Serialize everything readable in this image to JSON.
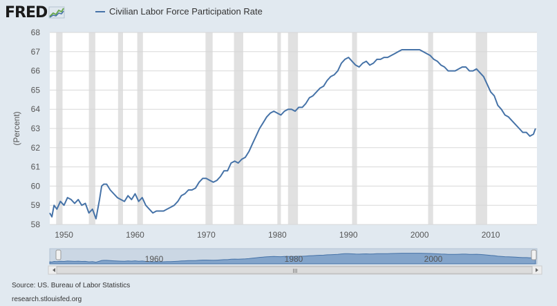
{
  "logo": {
    "text": "FRED",
    "icon": "trend-line-icon"
  },
  "source": "Source: US. Bureau of Labor Statistics",
  "site": "research.stlouisfed.org",
  "navigator": {
    "labels": [
      "1960",
      "1980",
      "2000"
    ],
    "scroll_grip": "III"
  },
  "colors": {
    "line": "#4572a7",
    "recession": "#e1e1e1",
    "background": "#e1e9f0",
    "plot": "#ffffff",
    "navigator_fill": "#6b93c2"
  },
  "chart_data": {
    "type": "line",
    "title": "",
    "xlabel": "",
    "ylabel": "(Percent)",
    "xlim": [
      1948,
      2016.5
    ],
    "ylim": [
      58,
      68
    ],
    "yticks": [
      58,
      59,
      60,
      61,
      62,
      63,
      64,
      65,
      66,
      67,
      68
    ],
    "xticks": [
      1950,
      1960,
      1970,
      1980,
      1990,
      2000,
      2010
    ],
    "grid": true,
    "legend_position": "top",
    "series": [
      {
        "name": "Civilian Labor Force Participation Rate",
        "color": "#4572a7",
        "x": [
          1948.0,
          1948.3,
          1948.6,
          1949.0,
          1949.5,
          1950.0,
          1950.5,
          1951.0,
          1951.5,
          1952.0,
          1952.5,
          1953.0,
          1953.5,
          1954.0,
          1954.5,
          1955.0,
          1955.3,
          1955.6,
          1956.0,
          1956.5,
          1957.0,
          1957.5,
          1958.0,
          1958.5,
          1959.0,
          1959.5,
          1960.0,
          1960.5,
          1961.0,
          1961.5,
          1962.0,
          1962.5,
          1963.0,
          1963.5,
          1964.0,
          1964.5,
          1965.0,
          1965.5,
          1966.0,
          1966.5,
          1967.0,
          1967.5,
          1968.0,
          1968.5,
          1969.0,
          1969.5,
          1970.0,
          1970.5,
          1971.0,
          1971.5,
          1972.0,
          1972.5,
          1973.0,
          1973.5,
          1974.0,
          1974.5,
          1975.0,
          1975.5,
          1976.0,
          1976.5,
          1977.0,
          1977.5,
          1978.0,
          1978.5,
          1979.0,
          1979.5,
          1980.0,
          1980.5,
          1981.0,
          1981.5,
          1982.0,
          1982.5,
          1983.0,
          1983.5,
          1984.0,
          1984.5,
          1985.0,
          1985.5,
          1986.0,
          1986.5,
          1987.0,
          1987.5,
          1988.0,
          1988.5,
          1989.0,
          1989.5,
          1990.0,
          1990.5,
          1991.0,
          1991.5,
          1992.0,
          1992.5,
          1993.0,
          1993.5,
          1994.0,
          1994.5,
          1995.0,
          1995.5,
          1996.0,
          1996.5,
          1997.0,
          1997.5,
          1998.0,
          1998.5,
          1999.0,
          1999.5,
          2000.0,
          2000.5,
          2001.0,
          2001.5,
          2002.0,
          2002.5,
          2003.0,
          2003.5,
          2004.0,
          2004.5,
          2005.0,
          2005.5,
          2006.0,
          2006.5,
          2007.0,
          2007.5,
          2008.0,
          2008.5,
          2009.0,
          2009.5,
          2010.0,
          2010.5,
          2011.0,
          2011.5,
          2012.0,
          2012.5,
          2013.0,
          2013.5,
          2014.0,
          2014.5,
          2015.0,
          2015.5,
          2016.0,
          2016.3
        ],
        "values": [
          58.6,
          58.4,
          59.0,
          58.8,
          59.2,
          59.0,
          59.4,
          59.3,
          59.1,
          59.3,
          59.0,
          59.1,
          58.6,
          58.8,
          58.3,
          59.3,
          60.0,
          60.1,
          60.1,
          59.8,
          59.6,
          59.4,
          59.3,
          59.2,
          59.5,
          59.3,
          59.6,
          59.2,
          59.4,
          59.0,
          58.8,
          58.6,
          58.7,
          58.7,
          58.7,
          58.8,
          58.9,
          59.0,
          59.2,
          59.5,
          59.6,
          59.8,
          59.8,
          59.9,
          60.2,
          60.4,
          60.4,
          60.3,
          60.2,
          60.3,
          60.5,
          60.8,
          60.8,
          61.2,
          61.3,
          61.2,
          61.4,
          61.5,
          61.8,
          62.2,
          62.6,
          63.0,
          63.3,
          63.6,
          63.8,
          63.9,
          63.8,
          63.7,
          63.9,
          64.0,
          64.0,
          63.9,
          64.1,
          64.1,
          64.3,
          64.6,
          64.7,
          64.9,
          65.1,
          65.2,
          65.5,
          65.7,
          65.8,
          66.0,
          66.4,
          66.6,
          66.7,
          66.5,
          66.3,
          66.2,
          66.4,
          66.5,
          66.3,
          66.4,
          66.6,
          66.6,
          66.7,
          66.7,
          66.8,
          66.9,
          67.0,
          67.1,
          67.1,
          67.1,
          67.1,
          67.1,
          67.1,
          67.0,
          66.9,
          66.8,
          66.6,
          66.5,
          66.3,
          66.2,
          66.0,
          66.0,
          66.0,
          66.1,
          66.2,
          66.2,
          66.0,
          66.0,
          66.1,
          65.9,
          65.7,
          65.3,
          64.9,
          64.7,
          64.2,
          64.0,
          63.7,
          63.6,
          63.4,
          63.2,
          63.0,
          62.8,
          62.8,
          62.6,
          62.7,
          63.0
        ]
      }
    ],
    "recessions": [
      [
        1948.9,
        1949.8
      ],
      [
        1953.5,
        1954.4
      ],
      [
        1957.6,
        1958.3
      ],
      [
        1960.3,
        1961.1
      ],
      [
        1969.9,
        1970.9
      ],
      [
        1973.9,
        1975.2
      ],
      [
        1980.0,
        1980.5
      ],
      [
        1981.5,
        1982.9
      ],
      [
        1990.5,
        1991.2
      ],
      [
        2001.2,
        2001.9
      ],
      [
        2007.9,
        2009.5
      ]
    ]
  }
}
